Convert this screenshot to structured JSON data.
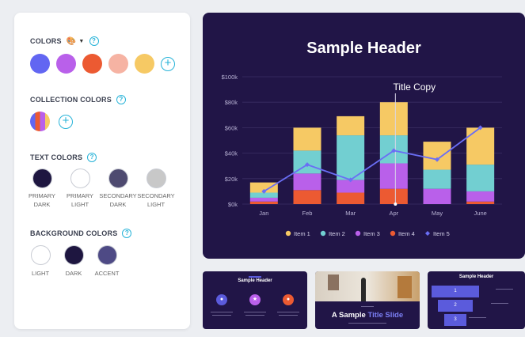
{
  "panel": {
    "colors_title": "COLORS",
    "collection_title": "COLLECTION COLORS",
    "text_colors_title": "TEXT COLORS",
    "background_title": "BACKGROUND COLORS",
    "help_glyph": "?",
    "plus_glyph": "+",
    "palette_glyph": "🎨",
    "caret_glyph": "▼",
    "colors": [
      "#6266f2",
      "#b960ea",
      "#ec5a32",
      "#f6b3a3",
      "#f6c964"
    ],
    "collection": [
      "#6266f2",
      "#ec5a32",
      "#b960ea",
      "#f6c964"
    ],
    "text_colors": [
      {
        "color": "#1e1640",
        "line1": "PRIMARY",
        "line2": "DARK"
      },
      {
        "color": "#ffffff",
        "line1": "PRIMARY",
        "line2": "LIGHT"
      },
      {
        "color": "#4e4a70",
        "line1": "SECONDARY",
        "line2": "DARK"
      },
      {
        "color": "#c8c8c8",
        "line1": "SECONDARY",
        "line2": "LIGHT"
      }
    ],
    "background_colors": [
      {
        "color": "#ffffff",
        "label": "LIGHT"
      },
      {
        "color": "#1e1640",
        "label": "DARK"
      },
      {
        "color": "#4e4a85",
        "label": "ACCENT"
      }
    ]
  },
  "slide": {
    "title": "Sample Header",
    "annotation": "Title Copy"
  },
  "thumbs": {
    "t1_title": "Sample Header",
    "t2_title_a": "A Sample ",
    "t2_title_b": "Title Slide",
    "t3_title": "Sample Header",
    "funnel": [
      "1",
      "2",
      "3"
    ]
  },
  "chart_data": {
    "type": "bar",
    "stacked": true,
    "categories": [
      "Jan",
      "Feb",
      "Mar",
      "Apr",
      "May",
      "June"
    ],
    "yticks": [
      "$0k",
      "$20k",
      "$40k",
      "$60k",
      "$80k",
      "$100k"
    ],
    "ylim": [
      0,
      100
    ],
    "series": [
      {
        "name": "Item 4",
        "color": "#ec5a32",
        "values": [
          2,
          11,
          9,
          12,
          0,
          2
        ]
      },
      {
        "name": "Item 3",
        "color": "#b960ea",
        "values": [
          3,
          13,
          10,
          20,
          12,
          8
        ]
      },
      {
        "name": "Item 2",
        "color": "#72cfd1",
        "values": [
          4,
          18,
          35,
          22,
          15,
          21
        ]
      },
      {
        "name": "Item 1",
        "color": "#f6c964",
        "values": [
          8,
          18,
          15,
          26,
          22,
          29
        ]
      }
    ],
    "line": {
      "name": "Item 5",
      "color": "#6a6ef5",
      "values": [
        10,
        31,
        19,
        42,
        35,
        60
      ]
    },
    "legend": [
      "Item 1",
      "Item 2",
      "Item 3",
      "Item 4",
      "Item 5"
    ],
    "legend_colors": [
      "#f6c964",
      "#72cfd1",
      "#b960ea",
      "#ec5a32",
      "#6a6ef5"
    ],
    "legend_position": "bottom"
  }
}
